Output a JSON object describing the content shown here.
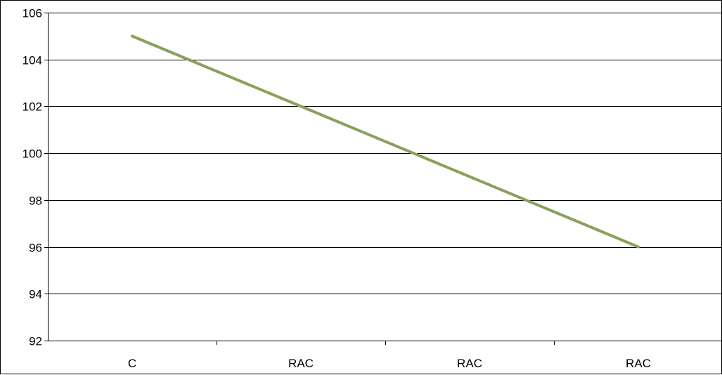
{
  "chart_data": {
    "type": "line",
    "categories": [
      "C",
      "RAC",
      "RAC",
      "RAC"
    ],
    "series": [
      {
        "values": [
          105,
          102,
          99,
          96
        ],
        "color": "#8aa05a"
      }
    ],
    "ylim": [
      92,
      106
    ],
    "yticks": [
      92,
      94,
      96,
      98,
      100,
      102,
      104,
      106
    ],
    "grid": true,
    "legend": "none"
  }
}
